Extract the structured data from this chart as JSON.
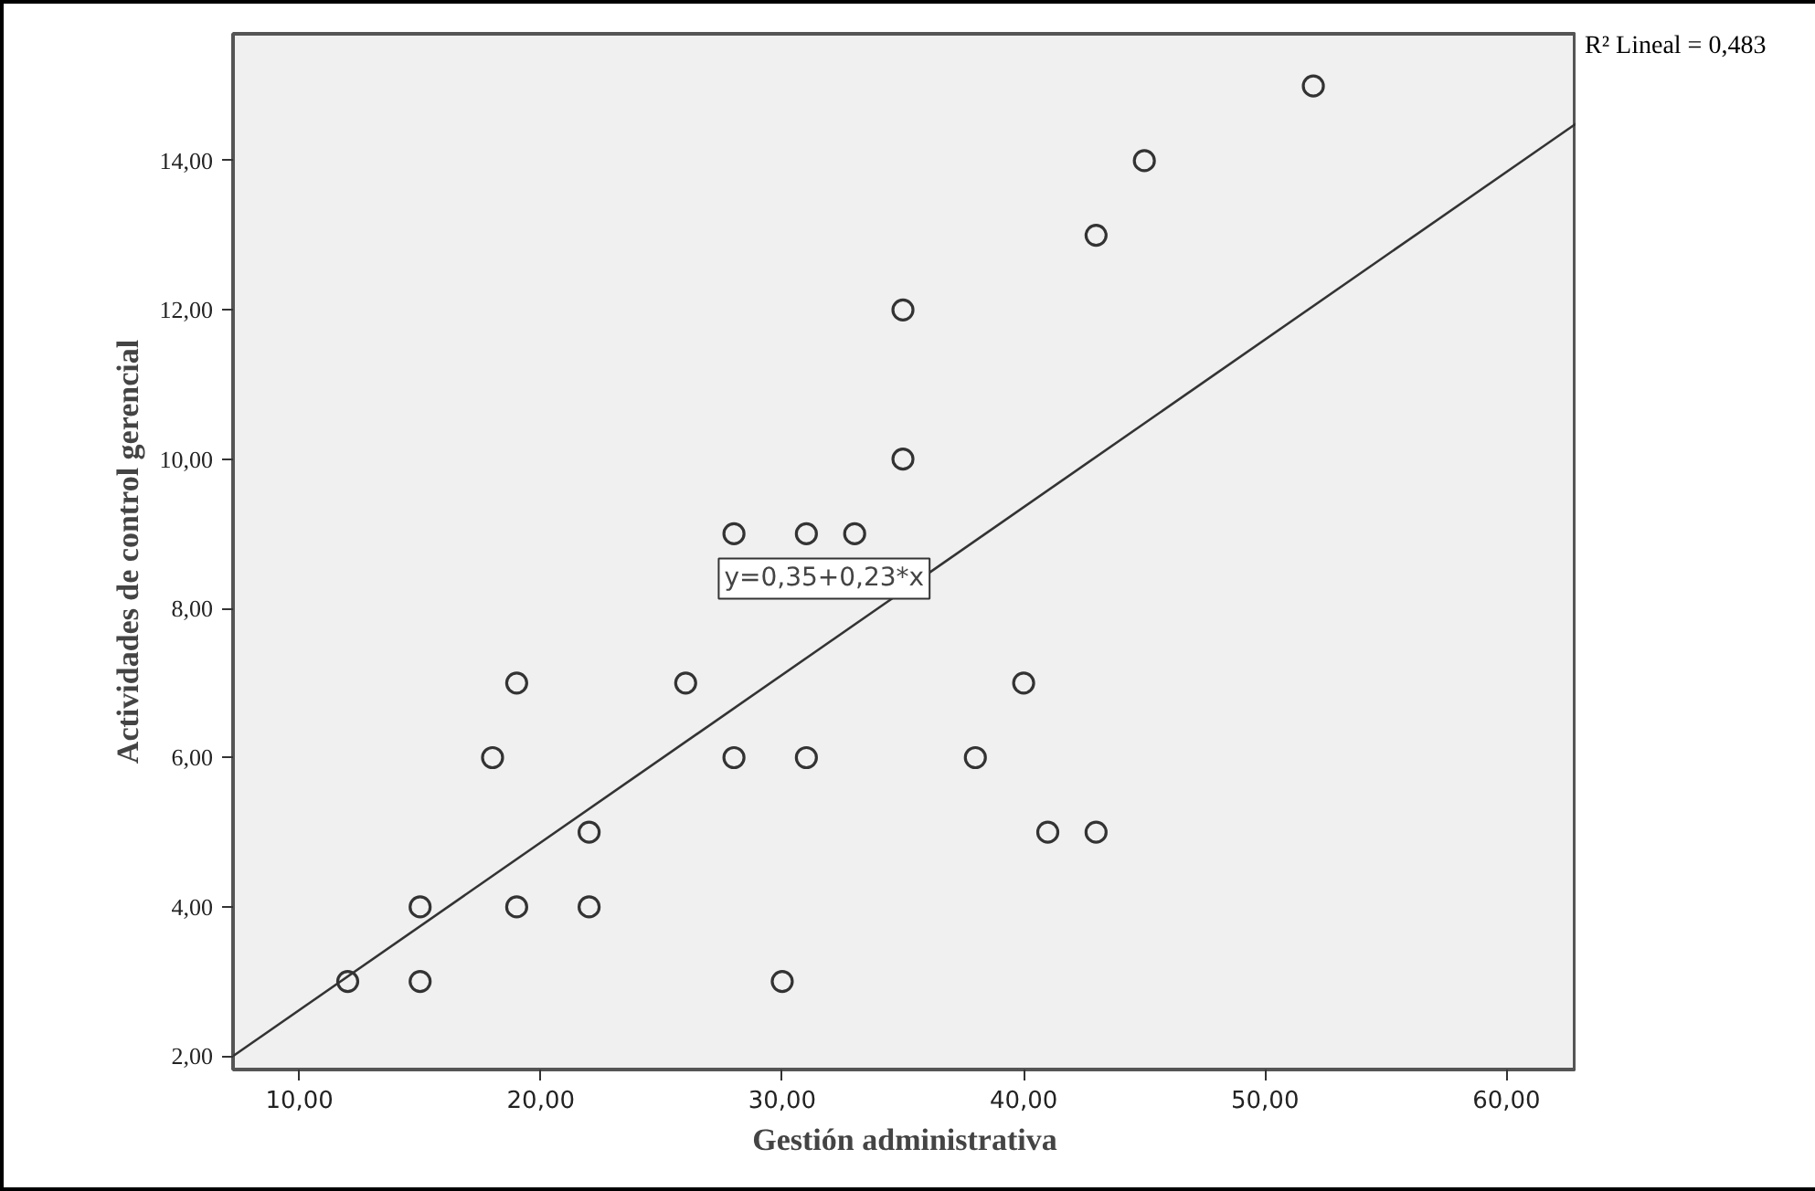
{
  "chart_data": {
    "type": "scatter",
    "xlabel": "Gestión administrativa",
    "ylabel": "Actividades de control gerencial",
    "xlim": [
      7.25,
      62.9
    ],
    "ylim": [
      1.82,
      15.7
    ],
    "xticks": [
      {
        "value": 10,
        "label": "10,00"
      },
      {
        "value": 20,
        "label": "20,00"
      },
      {
        "value": 30,
        "label": "30,00"
      },
      {
        "value": 40,
        "label": "40,00"
      },
      {
        "value": 50,
        "label": "50,00"
      },
      {
        "value": 60,
        "label": "60,00"
      }
    ],
    "yticks": [
      {
        "value": 2,
        "label": "2,00"
      },
      {
        "value": 4,
        "label": "4,00"
      },
      {
        "value": 6,
        "label": "6,00"
      },
      {
        "value": 8,
        "label": "8,00"
      },
      {
        "value": 10,
        "label": "10,00"
      },
      {
        "value": 12,
        "label": "12,00"
      },
      {
        "value": 14,
        "label": "14,00"
      }
    ],
    "series": [
      {
        "marker": "circle",
        "color": "#333333",
        "x": [
          12,
          15,
          15,
          18,
          19,
          19,
          22,
          22,
          26,
          28,
          28,
          30,
          31,
          31,
          33,
          35,
          35,
          38,
          40,
          41,
          43,
          43,
          45,
          52
        ],
        "values": [
          3,
          3,
          4,
          6,
          7,
          4,
          5,
          4,
          7,
          6,
          9,
          3,
          9,
          6,
          9,
          12,
          10,
          6,
          7,
          5,
          5,
          13,
          14,
          15
        ]
      },
      {
        "type": "line",
        "color": "#333333",
        "x": [
          7.25,
          62.9
        ],
        "values": [
          2.0,
          14.5
        ]
      }
    ],
    "annotations": [
      "y=0,35+0,23*x",
      "R² Lineal = 0,483"
    ]
  }
}
